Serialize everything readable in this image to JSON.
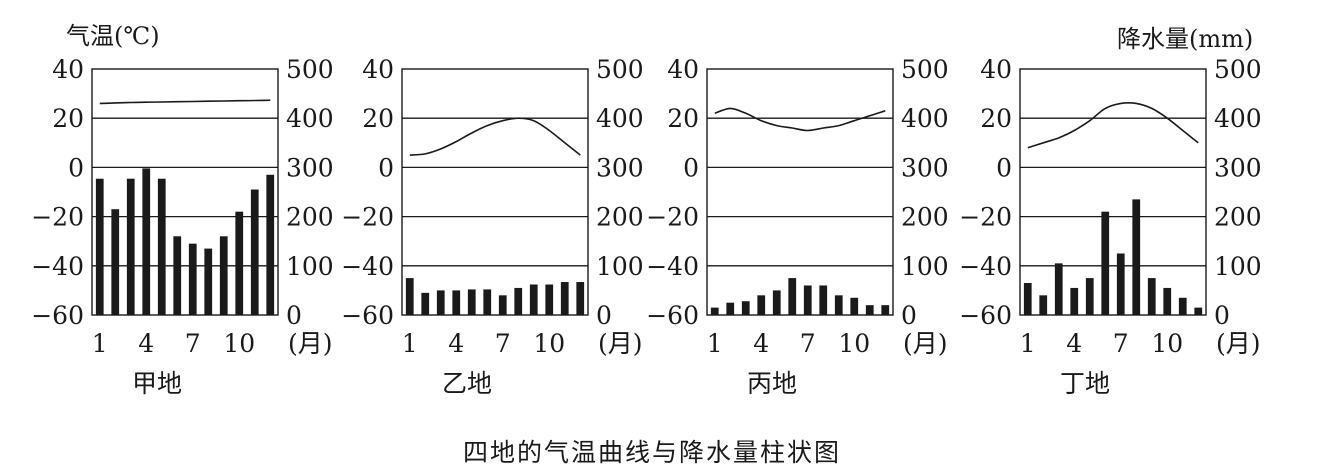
{
  "figure": {
    "caption": "四地的气温曲线与降水量柱状图",
    "left_unit": "气温(℃)",
    "right_unit": "降水量(mm)",
    "month_unit": "(月)",
    "month_tick_labels": [
      "1",
      "4",
      "7",
      "10"
    ],
    "temp_tick_labels": [
      "40",
      "20",
      "0",
      "−20",
      "−40",
      "−60"
    ],
    "precip_tick_labels": [
      "500",
      "400",
      "300",
      "200",
      "100",
      "0"
    ]
  },
  "chart_data": [
    {
      "type": "bar+line",
      "title": "甲地",
      "xlabel": "(月)",
      "y_left_label": "气温(℃)",
      "y_right_label": "降水量(mm)",
      "months": [
        1,
        2,
        3,
        4,
        5,
        6,
        7,
        8,
        9,
        10,
        11,
        12
      ],
      "temperature": [
        26,
        26.2,
        26.4,
        26.5,
        26.6,
        26.7,
        26.8,
        26.9,
        27,
        27.1,
        27.2,
        27.3
      ],
      "precipitation": [
        277,
        215,
        277,
        298,
        277,
        160,
        145,
        135,
        160,
        210,
        255,
        285
      ],
      "temp_range": [
        -60,
        40
      ],
      "precip_range": [
        0,
        500
      ],
      "grid": "horizontal"
    },
    {
      "type": "bar+line",
      "title": "乙地",
      "xlabel": "(月)",
      "y_left_label": "气温(℃)",
      "y_right_label": "降水量(mm)",
      "months": [
        1,
        2,
        3,
        4,
        5,
        6,
        7,
        8,
        9,
        10,
        11,
        12
      ],
      "temperature": [
        5,
        5.5,
        7.5,
        10.5,
        14,
        17,
        19,
        20,
        19,
        15,
        10,
        5
      ],
      "precipitation": [
        75,
        45,
        50,
        50,
        52,
        52,
        40,
        55,
        62,
        62,
        67,
        67
      ],
      "temp_range": [
        -60,
        40
      ],
      "precip_range": [
        0,
        500
      ],
      "grid": "horizontal"
    },
    {
      "type": "bar+line",
      "title": "丙地",
      "xlabel": "(月)",
      "y_left_label": "气温(℃)",
      "y_right_label": "降水量(mm)",
      "months": [
        1,
        2,
        3,
        4,
        5,
        6,
        7,
        8,
        9,
        10,
        11,
        12
      ],
      "temperature": [
        22,
        24,
        22,
        19,
        17,
        16,
        15,
        16,
        17,
        19,
        21,
        23
      ],
      "precipitation": [
        15,
        25,
        28,
        40,
        50,
        75,
        60,
        60,
        40,
        35,
        20,
        20
      ],
      "temp_range": [
        -60,
        40
      ],
      "precip_range": [
        0,
        500
      ],
      "grid": "horizontal"
    },
    {
      "type": "bar+line",
      "title": "丁地",
      "xlabel": "(月)",
      "y_left_label": "气温(℃)",
      "y_right_label": "降水量(mm)",
      "months": [
        1,
        2,
        3,
        4,
        5,
        6,
        7,
        8,
        9,
        10,
        11,
        12
      ],
      "temperature": [
        8,
        10,
        12,
        15,
        19,
        24,
        26,
        26,
        24,
        20,
        15,
        10
      ],
      "precipitation": [
        65,
        40,
        105,
        55,
        75,
        210,
        125,
        235,
        75,
        55,
        35,
        15
      ],
      "temp_range": [
        -60,
        40
      ],
      "precip_range": [
        0,
        500
      ],
      "grid": "horizontal"
    }
  ]
}
